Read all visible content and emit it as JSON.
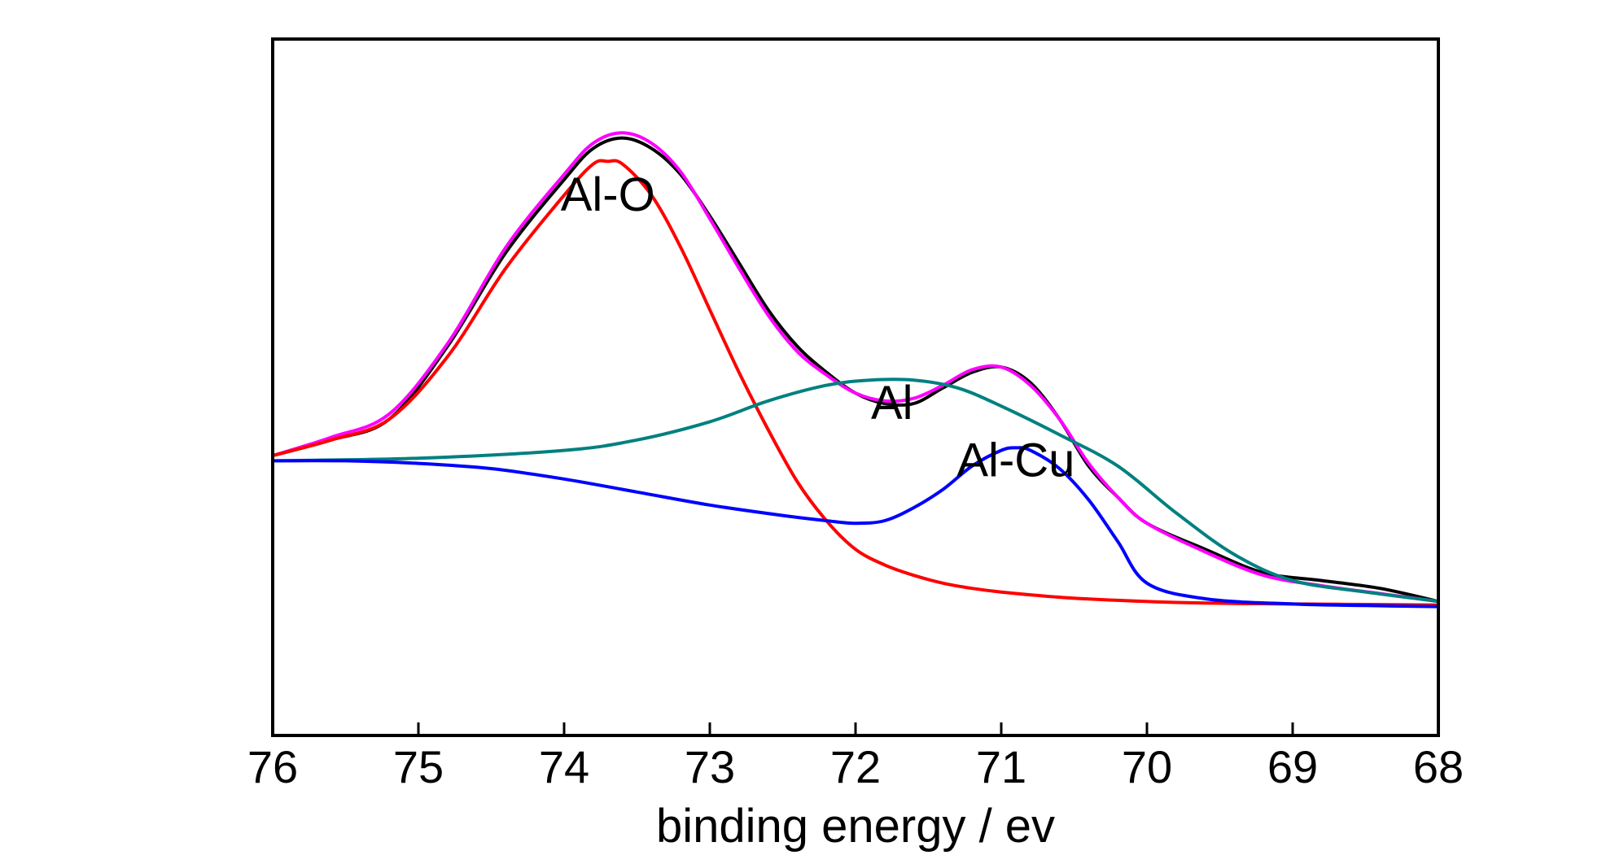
{
  "chart_data": {
    "type": "line",
    "title": "",
    "xlabel": "binding energy / ev",
    "ylabel": "",
    "x_reversed": true,
    "xlim": [
      68,
      76
    ],
    "ylim": [
      0,
      100
    ],
    "y_ticks_shown": false,
    "grid": false,
    "legend": "none",
    "x_ticks": [
      {
        "value": 76,
        "label": "76"
      },
      {
        "value": 75,
        "label": "75"
      },
      {
        "value": 74,
        "label": "74"
      },
      {
        "value": 73,
        "label": "73"
      },
      {
        "value": 72,
        "label": "72"
      },
      {
        "value": 71,
        "label": "71"
      },
      {
        "value": 70,
        "label": "70"
      },
      {
        "value": 69,
        "label": "69"
      },
      {
        "value": 68,
        "label": "68"
      }
    ],
    "annotations": [
      {
        "text": "Al-O",
        "x": 73.7,
        "y": 77
      },
      {
        "text": "Al",
        "x": 71.75,
        "y": 37
      },
      {
        "text": "Al-Cu",
        "x": 70.9,
        "y": 26
      }
    ],
    "series": [
      {
        "color": "#000000",
        "x": [
          76,
          75.6,
          75.2,
          74.8,
          74.4,
          74.0,
          73.8,
          73.6,
          73.4,
          73.2,
          73.0,
          72.8,
          72.6,
          72.4,
          72.2,
          72.0,
          71.8,
          71.6,
          71.4,
          71.2,
          71.0,
          70.8,
          70.6,
          70.4,
          70.2,
          70.0,
          69.6,
          69.2,
          68.8,
          68.4,
          68.0
        ],
        "y": [
          30,
          33,
          37,
          51,
          69,
          83,
          89,
          91,
          89,
          84,
          76,
          67,
          58,
          51,
          46,
          42,
          40,
          40,
          43,
          46,
          47,
          44,
          37,
          28,
          22,
          17,
          12,
          7.5,
          6,
          4.5,
          2
        ]
      },
      {
        "color": "#ff00ff",
        "x": [
          76,
          75.6,
          75.2,
          74.8,
          74.4,
          74.0,
          73.8,
          73.6,
          73.4,
          73.2,
          73.0,
          72.8,
          72.6,
          72.4,
          72.2,
          72.0,
          71.8,
          71.6,
          71.4,
          71.2,
          71.0,
          70.8,
          70.6,
          70.4,
          70.2,
          70.0,
          69.6,
          69.2,
          68.8,
          68.4,
          68.0
        ],
        "y": [
          30,
          33.5,
          38,
          51.5,
          70,
          84,
          90,
          92,
          90,
          84.5,
          75.5,
          66,
          57,
          50,
          45.5,
          42,
          40.5,
          41,
          43.5,
          46.5,
          47,
          43.5,
          37,
          28.5,
          22,
          17,
          11.5,
          7,
          5,
          3.5,
          2
        ]
      },
      {
        "color": "#ff0000",
        "x": [
          76,
          75.6,
          75.2,
          74.8,
          74.4,
          74.0,
          73.8,
          73.7,
          73.6,
          73.4,
          73.2,
          73.0,
          72.8,
          72.6,
          72.4,
          72.2,
          72.0,
          71.8,
          71.6,
          71.4,
          71.2,
          71.0,
          70.6,
          70.2,
          69.8,
          69.4,
          69.0,
          68.5,
          68.0
        ],
        "y": [
          30,
          33,
          37,
          49,
          66,
          80,
          86,
          86.5,
          86,
          80,
          70,
          58,
          46,
          35,
          25,
          17.5,
          12,
          9,
          7,
          5.5,
          4.5,
          3.8,
          2.8,
          2.2,
          1.8,
          1.6,
          1.5,
          1.4,
          1.3
        ]
      },
      {
        "color": "#008080",
        "x": [
          76,
          75.0,
          74.0,
          73.5,
          73.0,
          72.6,
          72.2,
          71.9,
          71.6,
          71.3,
          71.0,
          70.6,
          70.2,
          69.8,
          69.4,
          69.0,
          68.5,
          68.0
        ],
        "y": [
          29,
          29.5,
          31,
          33,
          36.5,
          40.5,
          43.5,
          44.5,
          44.5,
          43,
          39.5,
          34,
          28,
          19,
          11,
          6,
          3.8,
          2
        ]
      },
      {
        "color": "#0000ff",
        "x": [
          76,
          75.5,
          75.0,
          74.5,
          74.0,
          73.5,
          73.0,
          72.5,
          72.2,
          72.0,
          71.8,
          71.6,
          71.4,
          71.2,
          71.0,
          70.9,
          70.8,
          70.6,
          70.4,
          70.2,
          70.0,
          69.6,
          69.0,
          68.5,
          68.0
        ],
        "y": [
          29,
          29,
          28.5,
          27.5,
          25.5,
          23,
          20.5,
          18.5,
          17.5,
          17,
          17.5,
          20,
          23.5,
          28,
          31,
          31.5,
          31,
          27.5,
          21.5,
          13.5,
          5.5,
          2.5,
          1.5,
          1.2,
          1
        ]
      }
    ]
  }
}
